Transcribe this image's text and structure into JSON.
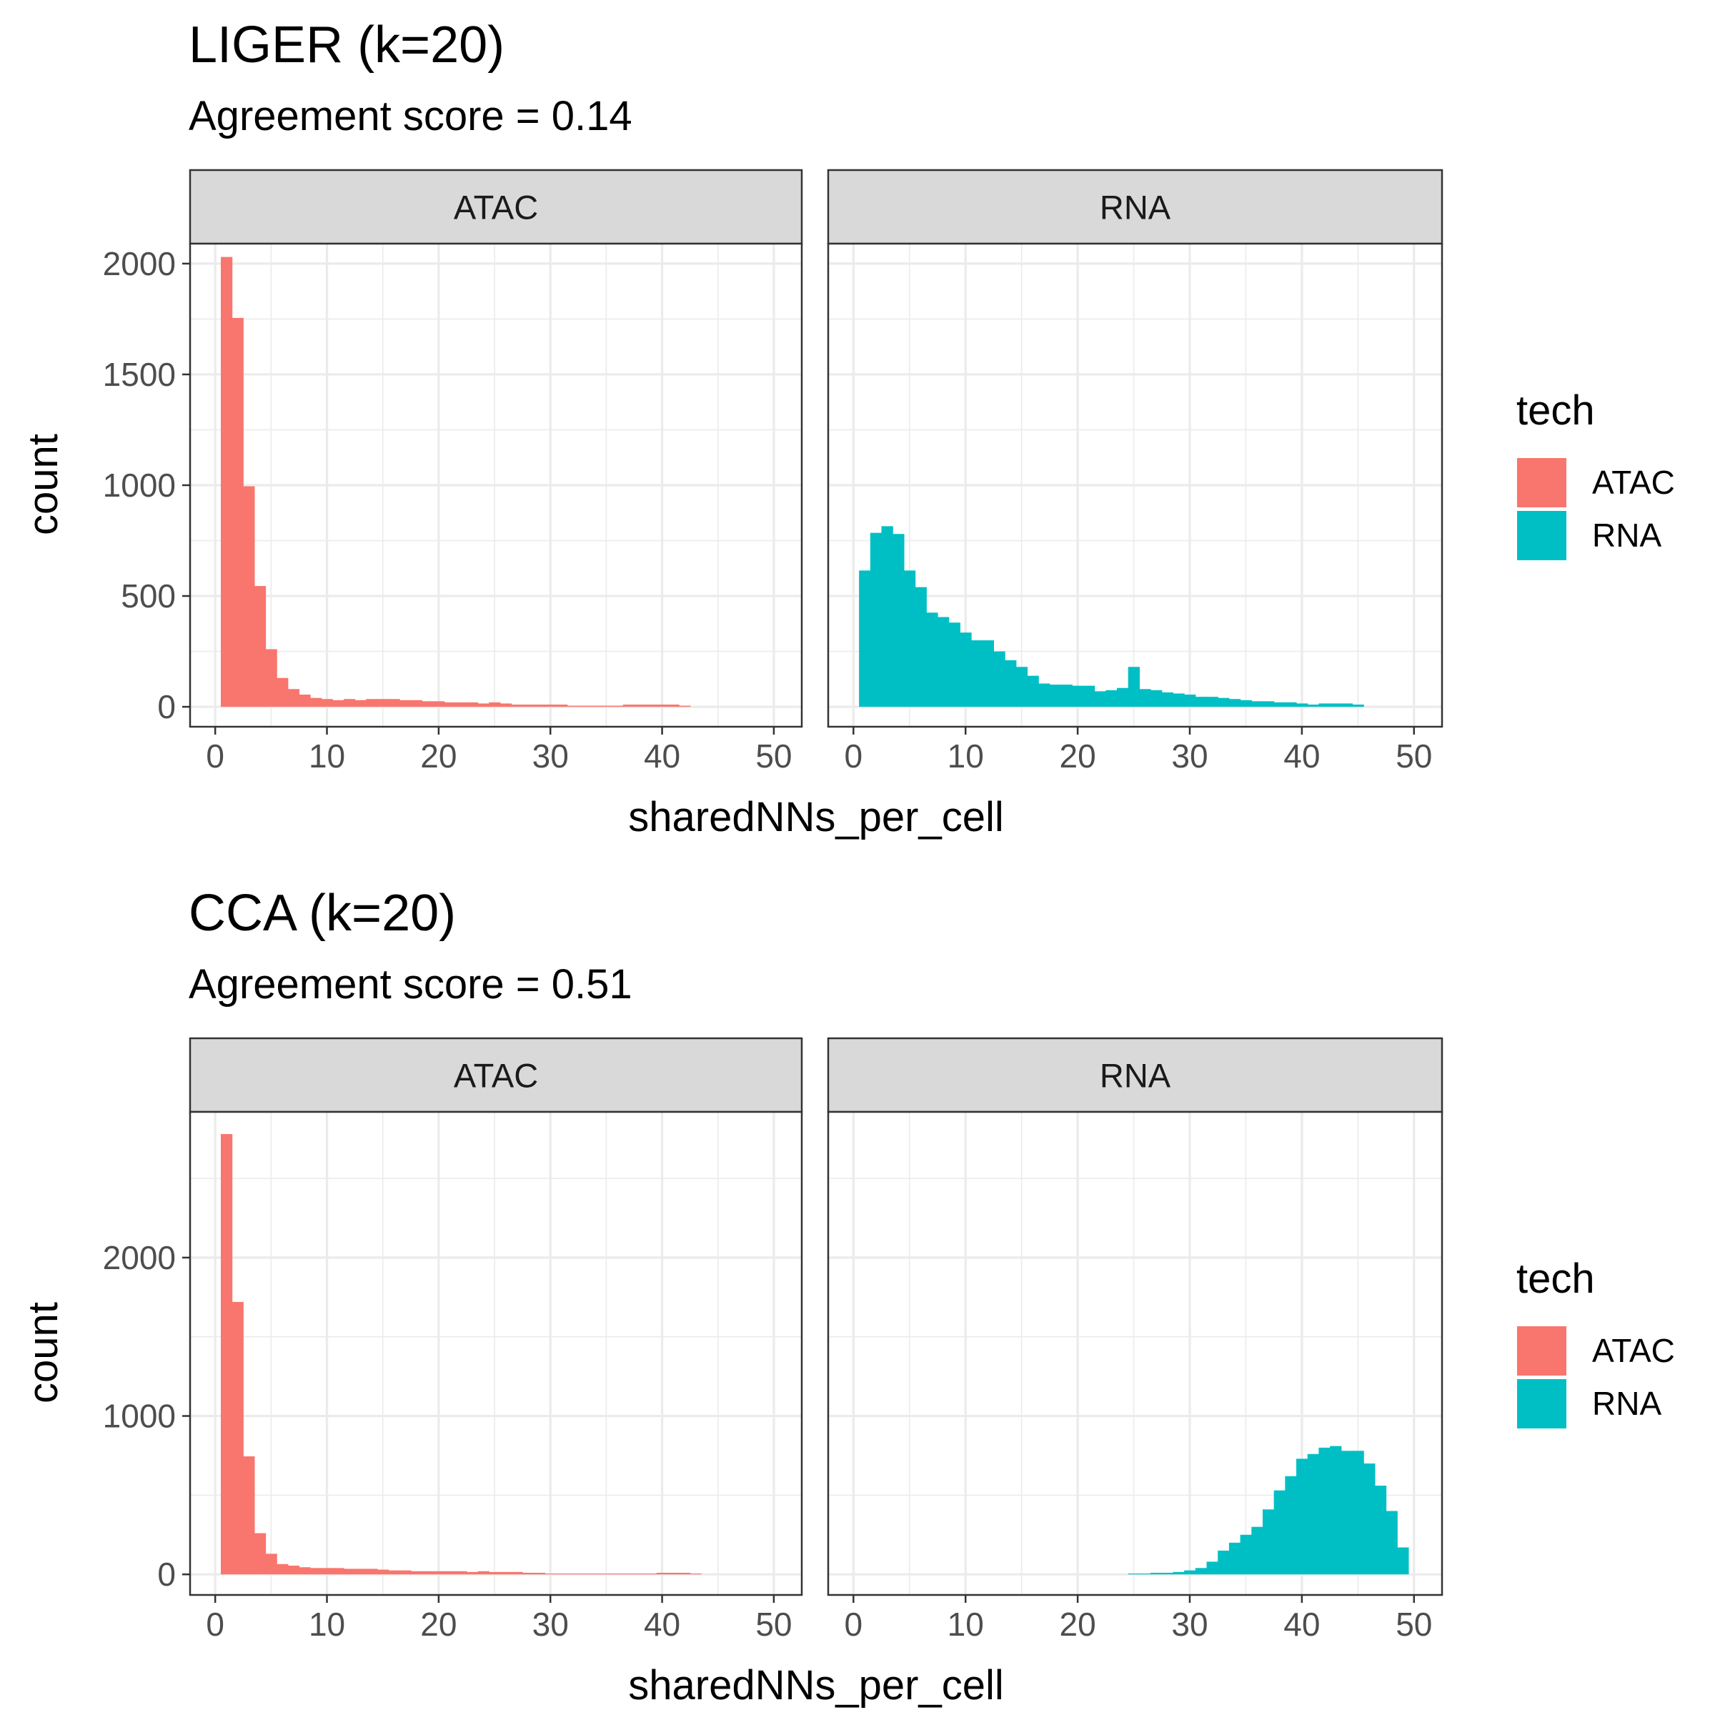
{
  "chart_data": [
    {
      "type": "bar",
      "title": "LIGER (k=20)",
      "subtitle": "Agreement score = 0.14",
      "xlabel": "sharedNNs_per_cell",
      "ylabel": "count",
      "ylim": [
        -90,
        2090
      ],
      "yticks": [
        0,
        500,
        1000,
        1500,
        2000
      ],
      "xlim": [
        -2.25,
        52.5
      ],
      "xticks": [
        0,
        10,
        20,
        30,
        40,
        50
      ],
      "grid": true,
      "legend": {
        "title": "tech",
        "position": "right",
        "entries": [
          "ATAC",
          "RNA"
        ]
      },
      "facets": [
        {
          "label": "ATAC",
          "color": "#F8766D",
          "bin_width": 1,
          "x": [
            1,
            2,
            3,
            4,
            5,
            6,
            7,
            8,
            9,
            10,
            11,
            12,
            13,
            14,
            15,
            16,
            17,
            18,
            19,
            20,
            21,
            22,
            23,
            24,
            25,
            26,
            27,
            28,
            29,
            30,
            31,
            32,
            33,
            34,
            35,
            36,
            37,
            38,
            39,
            40,
            41,
            42
          ],
          "values": [
            2030,
            1755,
            995,
            545,
            260,
            130,
            80,
            55,
            40,
            35,
            30,
            35,
            30,
            35,
            35,
            35,
            30,
            30,
            25,
            25,
            20,
            20,
            20,
            15,
            20,
            15,
            10,
            10,
            10,
            10,
            10,
            5,
            5,
            5,
            5,
            5,
            10,
            10,
            10,
            10,
            10,
            5
          ]
        },
        {
          "label": "RNA",
          "color": "#00BFC4",
          "bin_width": 1,
          "x": [
            1,
            2,
            3,
            4,
            5,
            6,
            7,
            8,
            9,
            10,
            11,
            12,
            13,
            14,
            15,
            16,
            17,
            18,
            19,
            20,
            21,
            22,
            23,
            24,
            25,
            26,
            27,
            28,
            29,
            30,
            31,
            32,
            33,
            34,
            35,
            36,
            37,
            38,
            39,
            40,
            41,
            42,
            43,
            44,
            45
          ],
          "values": [
            615,
            785,
            815,
            780,
            615,
            540,
            425,
            405,
            380,
            335,
            300,
            300,
            250,
            210,
            180,
            140,
            105,
            100,
            100,
            95,
            95,
            70,
            75,
            85,
            180,
            80,
            75,
            65,
            60,
            55,
            45,
            45,
            40,
            35,
            30,
            25,
            25,
            20,
            20,
            15,
            10,
            15,
            15,
            15,
            10
          ]
        }
      ]
    },
    {
      "type": "bar",
      "title": "CCA (k=20)",
      "subtitle": "Agreement score = 0.51",
      "xlabel": "sharedNNs_per_cell",
      "ylabel": "count",
      "ylim": [
        -130,
        2920
      ],
      "yticks": [
        0,
        1000,
        2000
      ],
      "xlim": [
        -2.25,
        52.5
      ],
      "xticks": [
        0,
        10,
        20,
        30,
        40,
        50
      ],
      "grid": true,
      "legend": {
        "title": "tech",
        "position": "right",
        "entries": [
          "ATAC",
          "RNA"
        ]
      },
      "facets": [
        {
          "label": "ATAC",
          "color": "#F8766D",
          "bin_width": 1,
          "x": [
            1,
            2,
            3,
            4,
            5,
            6,
            7,
            8,
            9,
            10,
            11,
            12,
            13,
            14,
            15,
            16,
            17,
            18,
            19,
            20,
            21,
            22,
            23,
            24,
            25,
            26,
            27,
            28,
            29,
            30,
            31,
            32,
            33,
            34,
            35,
            36,
            37,
            38,
            39,
            40,
            41,
            42,
            43
          ],
          "values": [
            2780,
            1720,
            745,
            260,
            130,
            65,
            55,
            45,
            40,
            40,
            40,
            35,
            35,
            35,
            30,
            25,
            25,
            20,
            20,
            20,
            20,
            20,
            15,
            20,
            15,
            15,
            15,
            10,
            10,
            5,
            5,
            5,
            5,
            5,
            5,
            5,
            5,
            5,
            5,
            10,
            10,
            10,
            5
          ]
        },
        {
          "label": "RNA",
          "color": "#00BFC4",
          "bin_width": 1,
          "x": [
            25,
            26,
            27,
            28,
            29,
            30,
            31,
            32,
            33,
            34,
            35,
            36,
            37,
            38,
            39,
            40,
            41,
            42,
            43,
            44,
            45,
            46,
            47,
            48,
            49
          ],
          "values": [
            5,
            5,
            10,
            10,
            15,
            25,
            40,
            80,
            150,
            200,
            250,
            300,
            410,
            530,
            620,
            730,
            760,
            800,
            810,
            780,
            780,
            700,
            560,
            400,
            170
          ]
        }
      ]
    }
  ]
}
